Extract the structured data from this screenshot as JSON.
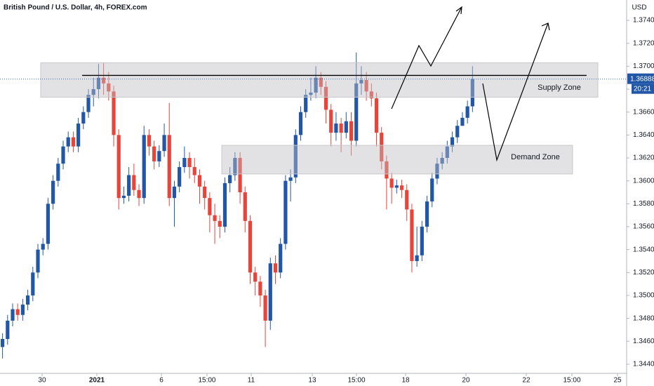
{
  "chart_data": {
    "type": "candlestick",
    "title": "British Pound / U.S. Dollar, 4h, FOREX.com",
    "currency": "USD",
    "countdown": "20:21",
    "last_price": 1.36888,
    "up_color": "#2157a6",
    "down_color": "#e8443a",
    "grid": false,
    "x": [
      0,
      1,
      2,
      3,
      4,
      5,
      6,
      7,
      8,
      9,
      10,
      11,
      12,
      13,
      14,
      15,
      16,
      17,
      18,
      19,
      20,
      21,
      22,
      23,
      24,
      25,
      26,
      27,
      28,
      29,
      30,
      31,
      32,
      33,
      34,
      35,
      36,
      37,
      38,
      39,
      40,
      41,
      42,
      43,
      44,
      45,
      46,
      47,
      48,
      49,
      50,
      51,
      52,
      53,
      54,
      55,
      56,
      57,
      58,
      59,
      60,
      61,
      62,
      63,
      64,
      65,
      66,
      67,
      68,
      69,
      70,
      71,
      72,
      73,
      74,
      75,
      76,
      77,
      78,
      79,
      80,
      81,
      82,
      83,
      84,
      85,
      86,
      87,
      88,
      89,
      90,
      91,
      92,
      93
    ],
    "open": [
      1.3455,
      1.3462,
      1.3478,
      1.3488,
      1.3483,
      1.3492,
      1.35,
      1.352,
      1.354,
      1.3545,
      1.358,
      1.36,
      1.3615,
      1.363,
      1.3638,
      1.363,
      1.365,
      1.366,
      1.3675,
      1.368,
      1.369,
      1.3685,
      1.3678,
      1.364,
      1.3585,
      1.3587,
      1.3605,
      1.3592,
      1.3585,
      1.364,
      1.363,
      1.3617,
      1.3626,
      1.364,
      1.3585,
      1.3595,
      1.3612,
      1.362,
      1.3612,
      1.3605,
      1.3595,
      1.3585,
      1.357,
      1.3565,
      1.356,
      1.3598,
      1.3605,
      1.362,
      1.359,
      1.3565,
      1.352,
      1.3512,
      1.35,
      1.3478,
      1.3528,
      1.352,
      1.3545,
      1.36,
      1.3603,
      1.364,
      1.366,
      1.3675,
      1.3677,
      1.369,
      1.3682,
      1.3662,
      1.3642,
      1.365,
      1.3642,
      1.3652,
      1.3635,
      1.3685,
      1.3688,
      1.3678,
      1.3672,
      1.3642,
      1.3617,
      1.3602,
      1.3594,
      1.3596,
      1.3592,
      1.3575,
      1.353,
      1.3535,
      1.356,
      1.3582,
      1.3602,
      1.3615,
      1.362,
      1.363,
      1.3638,
      1.3648,
      1.3655,
      1.3665
    ],
    "high": [
      1.3467,
      1.3483,
      1.3493,
      1.3493,
      1.3497,
      1.3505,
      1.3525,
      1.3545,
      1.355,
      1.3585,
      1.3605,
      1.362,
      1.3635,
      1.3643,
      1.3643,
      1.3655,
      1.3665,
      1.368,
      1.369,
      1.3702,
      1.3703,
      1.3695,
      1.3683,
      1.3645,
      1.3595,
      1.3612,
      1.3615,
      1.3597,
      1.3648,
      1.3645,
      1.3635,
      1.3631,
      1.365,
      1.3668,
      1.36,
      1.3617,
      1.363,
      1.3625,
      1.362,
      1.361,
      1.36,
      1.359,
      1.358,
      1.357,
      1.3603,
      1.3612,
      1.3625,
      1.3625,
      1.3595,
      1.357,
      1.3525,
      1.3517,
      1.3505,
      1.3533,
      1.3535,
      1.355,
      1.3605,
      1.361,
      1.3645,
      1.3665,
      1.368,
      1.369,
      1.37,
      1.3695,
      1.3687,
      1.3667,
      1.366,
      1.3655,
      1.366,
      1.366,
      1.3712,
      1.37,
      1.3695,
      1.3685,
      1.3677,
      1.3647,
      1.3622,
      1.3607,
      1.3601,
      1.3601,
      1.3597,
      1.358,
      1.356,
      1.3565,
      1.3587,
      1.3607,
      1.362,
      1.3625,
      1.3635,
      1.3643,
      1.3653,
      1.366,
      1.367,
      1.37
    ],
    "low": [
      1.3445,
      1.3457,
      1.3473,
      1.3478,
      1.3478,
      1.3487,
      1.3495,
      1.3515,
      1.3535,
      1.354,
      1.3575,
      1.3595,
      1.361,
      1.3625,
      1.3625,
      1.3625,
      1.3645,
      1.3655,
      1.3665,
      1.3672,
      1.3675,
      1.367,
      1.363,
      1.3575,
      1.358,
      1.3582,
      1.3587,
      1.3578,
      1.358,
      1.3622,
      1.361,
      1.3612,
      1.3621,
      1.3578,
      1.356,
      1.359,
      1.3607,
      1.3602,
      1.3598,
      1.358,
      1.3575,
      1.3555,
      1.3545,
      1.355,
      1.3555,
      1.359,
      1.36,
      1.358,
      1.3555,
      1.351,
      1.35,
      1.349,
      1.3455,
      1.347,
      1.351,
      1.3515,
      1.354,
      1.3582,
      1.3598,
      1.3635,
      1.3655,
      1.367,
      1.3672,
      1.3675,
      1.365,
      1.363,
      1.3635,
      1.3625,
      1.3637,
      1.3622,
      1.363,
      1.3675,
      1.367,
      1.3665,
      1.363,
      1.361,
      1.3575,
      1.358,
      1.3589,
      1.3585,
      1.3565,
      1.352,
      1.3525,
      1.353,
      1.3555,
      1.3577,
      1.3597,
      1.361,
      1.3615,
      1.3625,
      1.3633,
      1.365,
      1.365,
      1.366
    ],
    "close": [
      1.3462,
      1.3478,
      1.3488,
      1.3483,
      1.3492,
      1.35,
      1.352,
      1.354,
      1.3545,
      1.358,
      1.36,
      1.3615,
      1.363,
      1.3638,
      1.363,
      1.365,
      1.366,
      1.3675,
      1.368,
      1.369,
      1.3685,
      1.3678,
      1.364,
      1.3585,
      1.3587,
      1.3605,
      1.3592,
      1.3585,
      1.364,
      1.363,
      1.3617,
      1.3626,
      1.364,
      1.3585,
      1.3595,
      1.3612,
      1.362,
      1.3612,
      1.3605,
      1.3595,
      1.3585,
      1.357,
      1.3565,
      1.356,
      1.3598,
      1.3605,
      1.362,
      1.359,
      1.3565,
      1.352,
      1.3512,
      1.35,
      1.3478,
      1.3528,
      1.352,
      1.3545,
      1.36,
      1.3603,
      1.364,
      1.366,
      1.3675,
      1.3677,
      1.369,
      1.3682,
      1.3662,
      1.3642,
      1.365,
      1.3642,
      1.3652,
      1.3635,
      1.3685,
      1.3688,
      1.3678,
      1.3672,
      1.3642,
      1.3617,
      1.3602,
      1.3594,
      1.3596,
      1.3592,
      1.3575,
      1.353,
      1.3535,
      1.356,
      1.3582,
      1.3602,
      1.3615,
      1.362,
      1.363,
      1.3638,
      1.3648,
      1.3655,
      1.3665,
      1.36888
    ],
    "xlim": [
      -0.5,
      123.5
    ],
    "ylim": [
      1.3432,
      1.37578
    ],
    "xticks": [
      {
        "value": 7.83,
        "label": "30"
      },
      {
        "value": 18.66,
        "label": "2021"
      },
      {
        "value": 31.44,
        "label": "6"
      },
      {
        "value": 40.46,
        "label": "15:00"
      },
      {
        "value": 49.21,
        "label": "11"
      },
      {
        "value": 61.29,
        "label": "13"
      },
      {
        "value": 70.04,
        "label": "15:00"
      },
      {
        "value": 79.76,
        "label": "18"
      },
      {
        "value": 91.7,
        "label": "20"
      },
      {
        "value": 103.64,
        "label": "22"
      },
      {
        "value": 112.67,
        "label": "15:00"
      },
      {
        "value": 121.7,
        "label": "25"
      }
    ],
    "yticks": [
      {
        "value": 1.374,
        "label": "1.37400"
      },
      {
        "value": 1.372,
        "label": "1.37200"
      },
      {
        "value": 1.37,
        "label": "1.37000"
      },
      {
        "value": 1.368,
        "label": "1.36800"
      },
      {
        "value": 1.366,
        "label": "1.36600"
      },
      {
        "value": 1.364,
        "label": "1.36400"
      },
      {
        "value": 1.362,
        "label": "1.36200"
      },
      {
        "value": 1.36,
        "label": "1.36000"
      },
      {
        "value": 1.358,
        "label": "1.35800"
      },
      {
        "value": 1.356,
        "label": "1.35600"
      },
      {
        "value": 1.354,
        "label": "1.35400"
      },
      {
        "value": 1.352,
        "label": "1.35200"
      },
      {
        "value": 1.35,
        "label": "1.35000"
      },
      {
        "value": 1.348,
        "label": "1.34800"
      },
      {
        "value": 1.346,
        "label": "1.34600"
      },
      {
        "value": 1.344,
        "label": "1.34400"
      }
    ],
    "level": 1.3692,
    "zones": [
      {
        "label": "Supply Zone",
        "range": [
          1.3673,
          1.3703
        ]
      },
      {
        "label": "Demand Zone",
        "range": [
          1.3606,
          1.3631
        ]
      }
    ]
  }
}
